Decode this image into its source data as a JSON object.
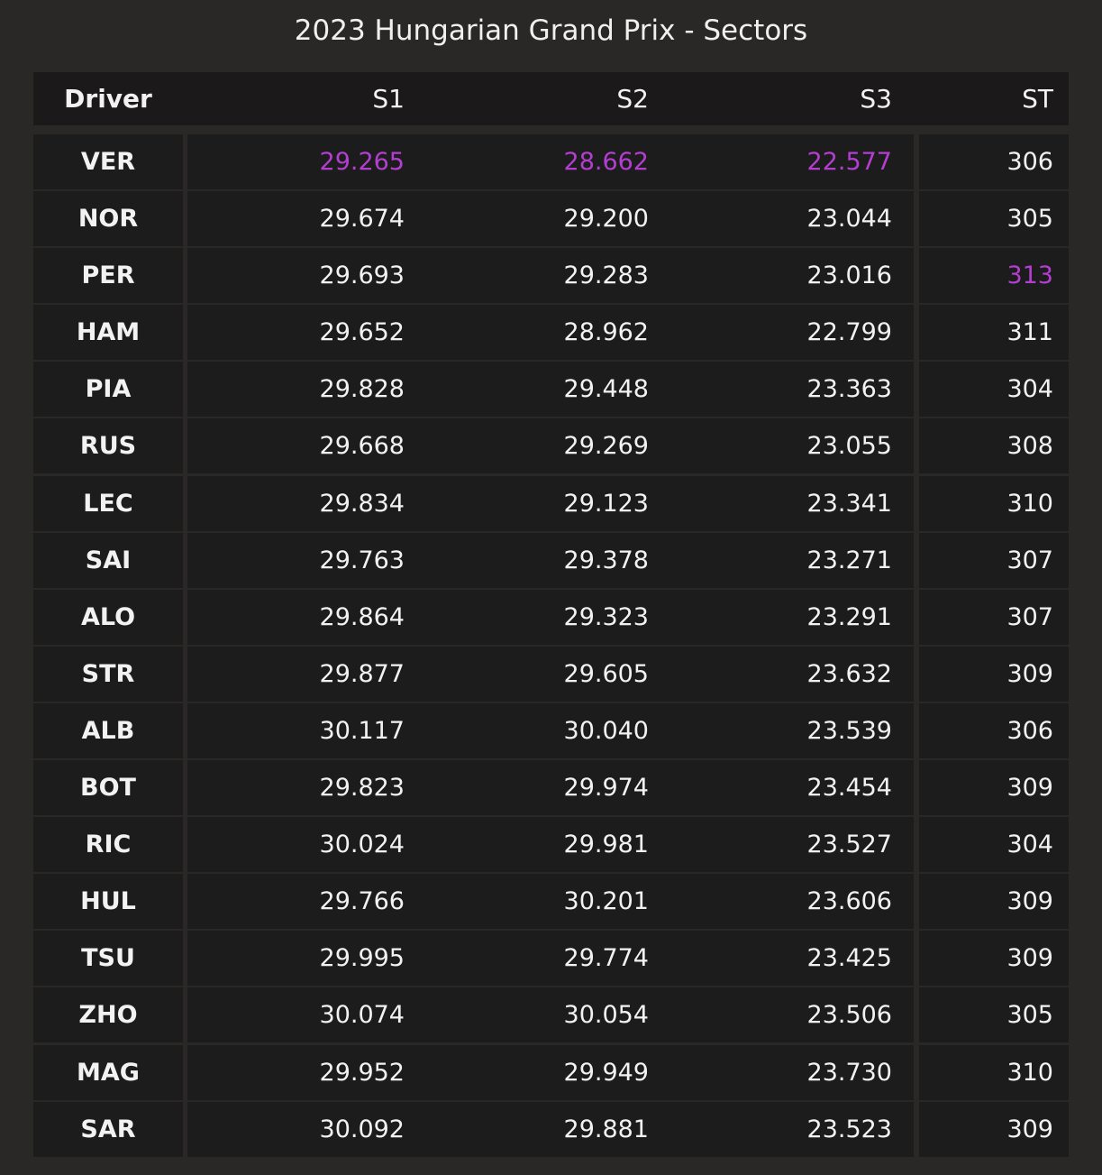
{
  "chart_data": {
    "type": "table",
    "title": "2023 Hungarian Grand Prix - Sectors",
    "columns": [
      "Driver",
      "S1",
      "S2",
      "S3",
      "ST"
    ],
    "rows": [
      {
        "driver": "VER",
        "s1": "29.265",
        "s2": "28.662",
        "s3": "22.577",
        "st": "306"
      },
      {
        "driver": "NOR",
        "s1": "29.674",
        "s2": "29.200",
        "s3": "23.044",
        "st": "305"
      },
      {
        "driver": "PER",
        "s1": "29.693",
        "s2": "29.283",
        "s3": "23.016",
        "st": "313"
      },
      {
        "driver": "HAM",
        "s1": "29.652",
        "s2": "28.962",
        "s3": "22.799",
        "st": "311"
      },
      {
        "driver": "PIA",
        "s1": "29.828",
        "s2": "29.448",
        "s3": "23.363",
        "st": "304"
      },
      {
        "driver": "RUS",
        "s1": "29.668",
        "s2": "29.269",
        "s3": "23.055",
        "st": "308"
      },
      {
        "driver": "LEC",
        "s1": "29.834",
        "s2": "29.123",
        "s3": "23.341",
        "st": "310"
      },
      {
        "driver": "SAI",
        "s1": "29.763",
        "s2": "29.378",
        "s3": "23.271",
        "st": "307"
      },
      {
        "driver": "ALO",
        "s1": "29.864",
        "s2": "29.323",
        "s3": "23.291",
        "st": "307"
      },
      {
        "driver": "STR",
        "s1": "29.877",
        "s2": "29.605",
        "s3": "23.632",
        "st": "309"
      },
      {
        "driver": "ALB",
        "s1": "30.117",
        "s2": "30.040",
        "s3": "23.539",
        "st": "306"
      },
      {
        "driver": "BOT",
        "s1": "29.823",
        "s2": "29.974",
        "s3": "23.454",
        "st": "309"
      },
      {
        "driver": "RIC",
        "s1": "30.024",
        "s2": "29.981",
        "s3": "23.527",
        "st": "304"
      },
      {
        "driver": "HUL",
        "s1": "29.766",
        "s2": "30.201",
        "s3": "23.606",
        "st": "309"
      },
      {
        "driver": "TSU",
        "s1": "29.995",
        "s2": "29.774",
        "s3": "23.425",
        "st": "309"
      },
      {
        "driver": "ZHO",
        "s1": "30.074",
        "s2": "30.054",
        "s3": "23.506",
        "st": "305"
      },
      {
        "driver": "MAG",
        "s1": "29.952",
        "s2": "29.949",
        "s3": "23.730",
        "st": "310"
      },
      {
        "driver": "SAR",
        "s1": "30.092",
        "s2": "29.881",
        "s3": "23.523",
        "st": "309"
      }
    ],
    "highlight_color": "#b43ed1",
    "highlighted": [
      {
        "row": 0,
        "column": "s1"
      },
      {
        "row": 0,
        "column": "s2"
      },
      {
        "row": 0,
        "column": "s3"
      },
      {
        "row": 2,
        "column": "st"
      }
    ]
  }
}
